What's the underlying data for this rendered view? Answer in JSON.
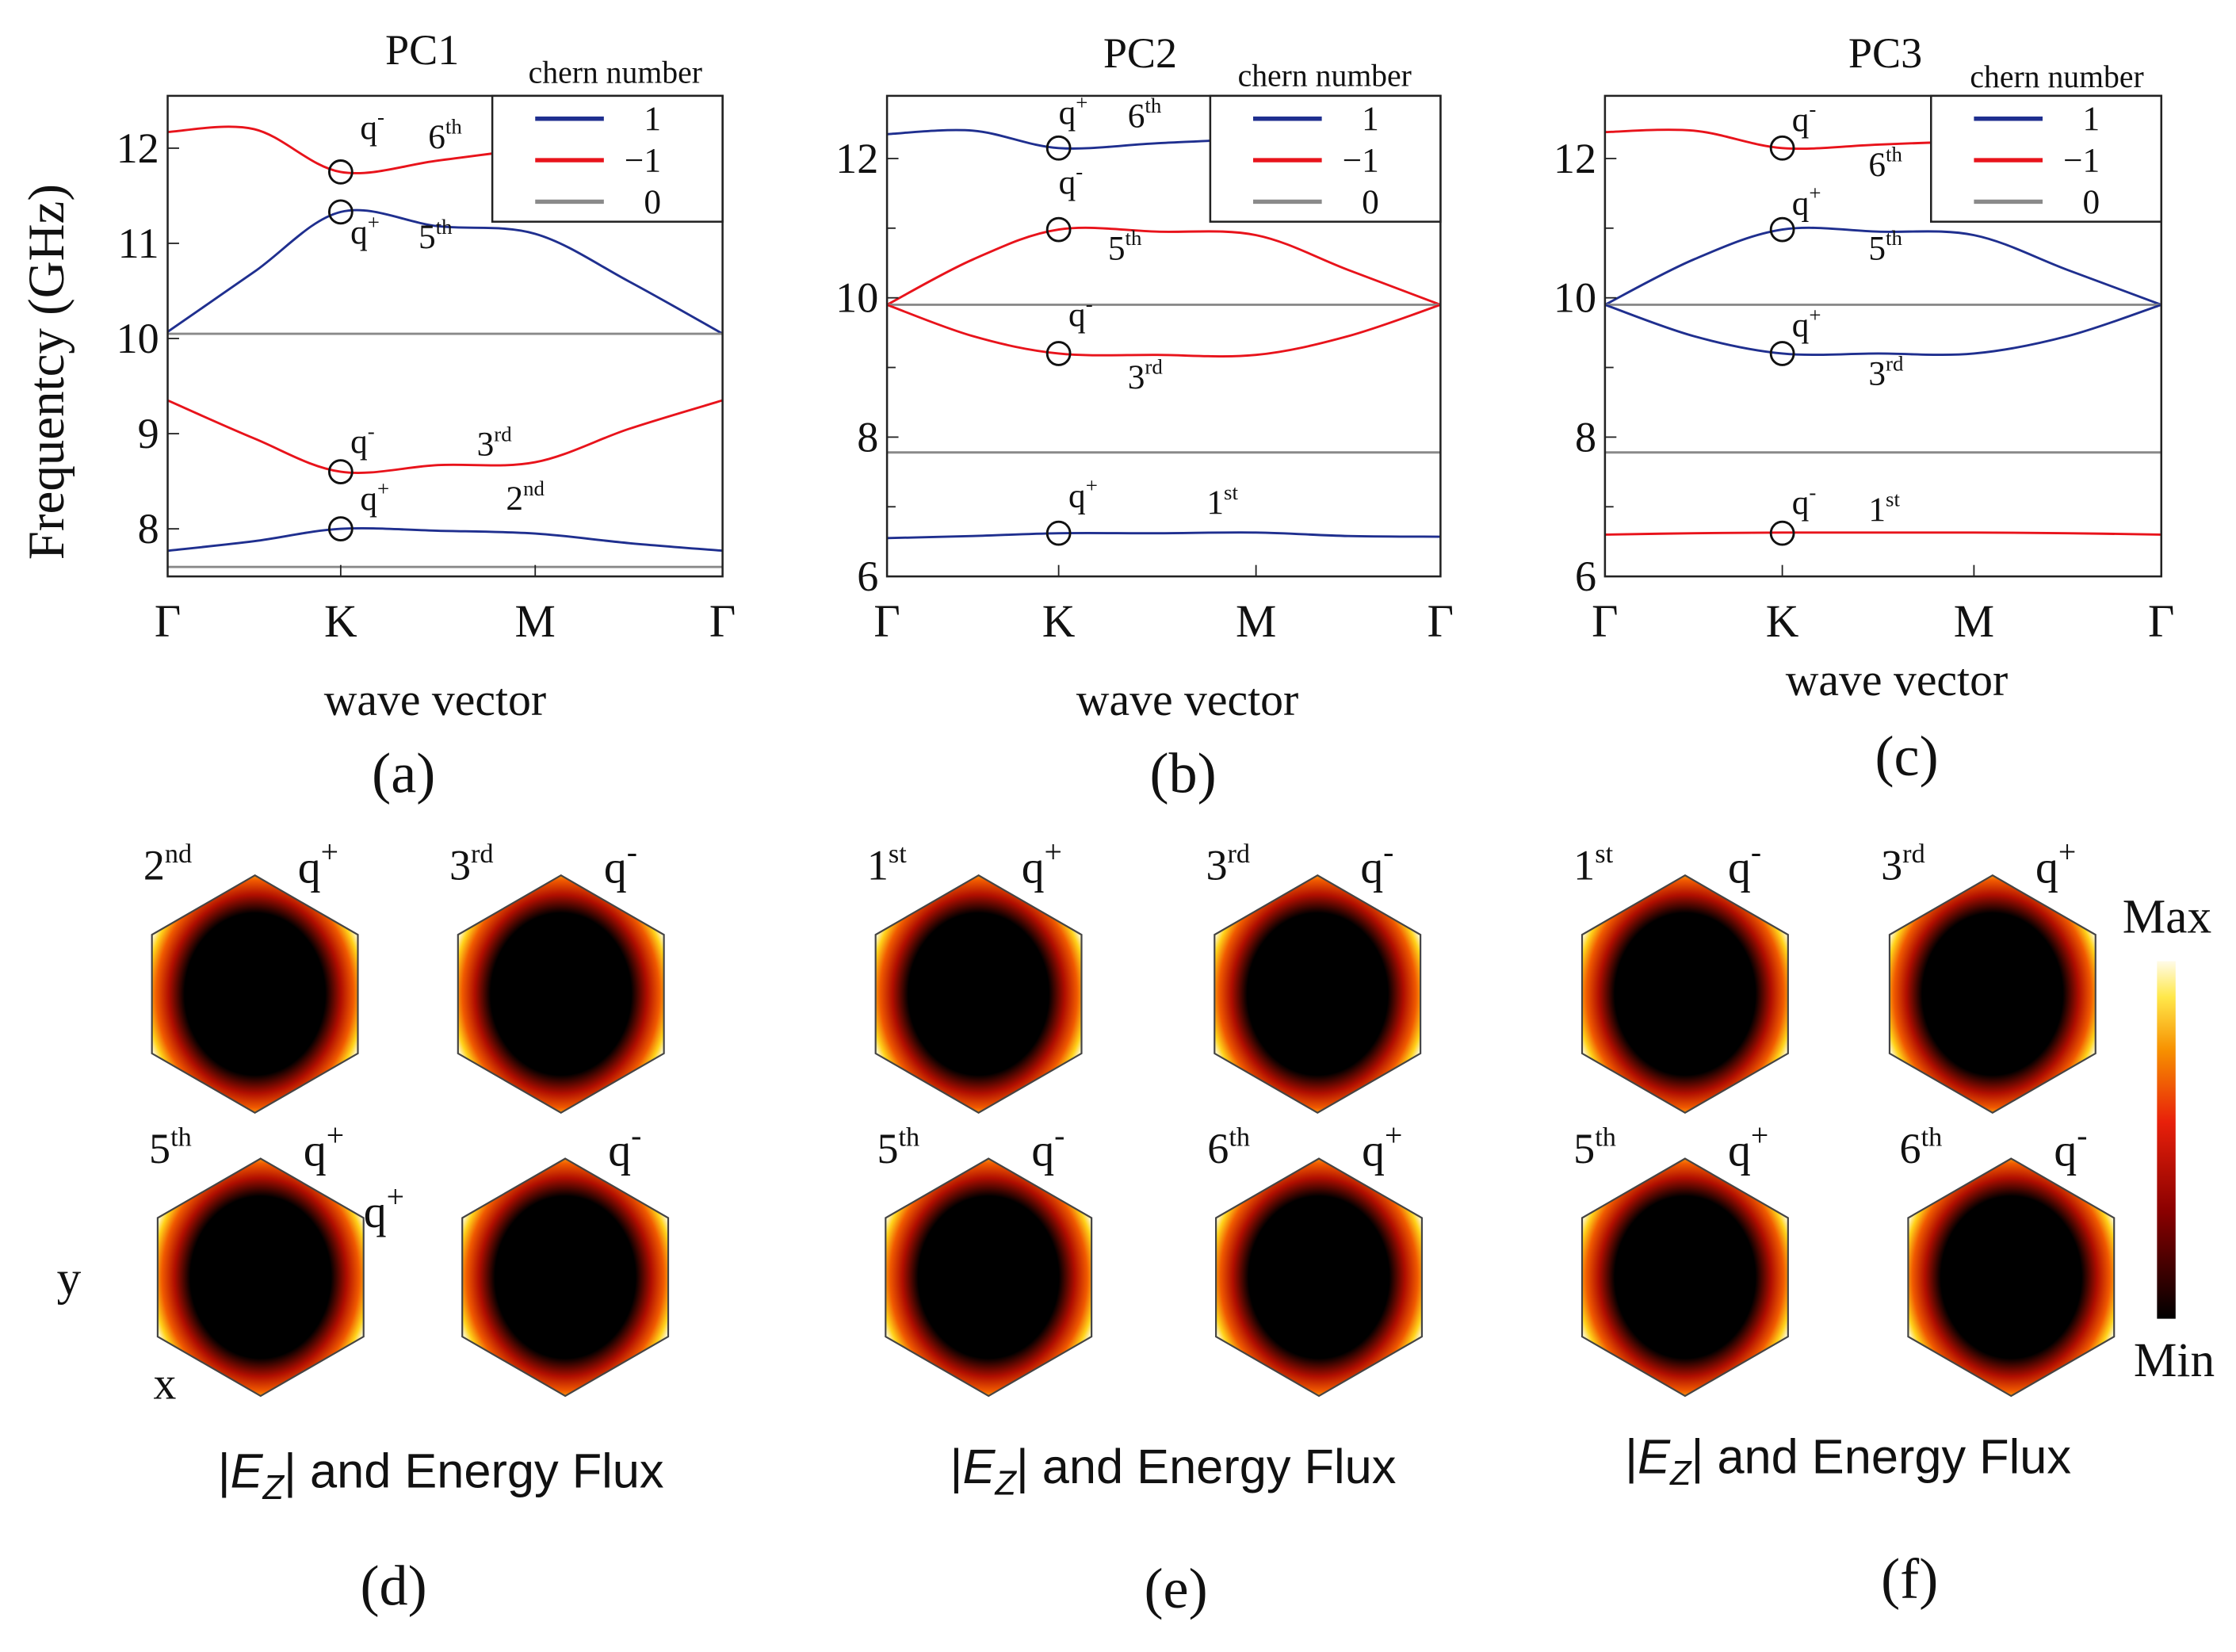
{
  "colors": {
    "chern_1": "#1f2f8f",
    "chern_minus1": "#e8131b",
    "chern_0": "#8a8a8a"
  },
  "chart_data": [
    {
      "type": "line",
      "panel_label": "(a)",
      "title": "PC1",
      "ylabel": "Frequentcy (GHz)",
      "xlabel": "wave vector",
      "x_ticks": [
        "Γ",
        "K",
        "M",
        "Γ"
      ],
      "y_ticks": [
        "8",
        "9",
        "10",
        "11",
        "12"
      ],
      "ylim": [
        7.5,
        12.55
      ],
      "legend": {
        "title": "chern number",
        "entries": [
          {
            "label": "1",
            "color": "#1f2f8f"
          },
          {
            "label": "−1",
            "color": "#e8131b"
          },
          {
            "label": "0",
            "color": "#8a8a8a"
          }
        ],
        "placement": "top-right"
      },
      "x": [
        0,
        0.5,
        1,
        1.5,
        2,
        2.5,
        3
      ],
      "series": [
        {
          "chern": "-1",
          "color": "#e8131b",
          "values": [
            12.17,
            12.2,
            11.75,
            11.87,
            12.0,
            12.1,
            12.15
          ]
        },
        {
          "chern": "1",
          "color": "#1f2f8f",
          "values": [
            10.07,
            10.7,
            11.33,
            11.18,
            11.1,
            10.6,
            10.05
          ]
        },
        {
          "chern": "0",
          "color": "#8a8a8a",
          "values": [
            10.05,
            10.05,
            10.05,
            10.05,
            10.05,
            10.05,
            10.05
          ]
        },
        {
          "chern": "-1",
          "color": "#e8131b",
          "values": [
            9.35,
            8.95,
            8.6,
            8.67,
            8.7,
            9.05,
            9.35
          ]
        },
        {
          "chern": "1",
          "color": "#1f2f8f",
          "values": [
            7.77,
            7.87,
            8.0,
            7.98,
            7.95,
            7.85,
            7.77
          ]
        },
        {
          "chern": "0",
          "color": "#8a8a8a",
          "values": [
            7.6,
            7.6,
            7.6,
            7.6,
            7.6,
            7.6,
            7.6
          ]
        }
      ],
      "markers": [
        {
          "x": 1,
          "y": 11.75
        },
        {
          "x": 1,
          "y": 11.33
        },
        {
          "x": 1,
          "y": 8.6
        },
        {
          "x": 1,
          "y": 8.0
        }
      ],
      "annotations": [
        {
          "text": "q",
          "sup": "-",
          "x": 1.1,
          "y": 12.1
        },
        {
          "text": "6",
          "sup": "th",
          "x": 1.45,
          "y": 12.0
        },
        {
          "text": "q",
          "sup": "+",
          "x": 1.05,
          "y": 11.0
        },
        {
          "text": "5",
          "sup": "th",
          "x": 1.4,
          "y": 10.95
        },
        {
          "text": "q",
          "sup": "-",
          "x": 1.05,
          "y": 8.8
        },
        {
          "text": "3",
          "sup": "rd",
          "x": 1.7,
          "y": 8.77
        },
        {
          "text": "q",
          "sup": "+",
          "x": 1.1,
          "y": 8.2
        },
        {
          "text": "2",
          "sup": "nd",
          "x": 1.85,
          "y": 8.2
        }
      ]
    },
    {
      "type": "line",
      "panel_label": "(b)",
      "title": "PC2",
      "xlabel": "wave vector",
      "x_ticks": [
        "Γ",
        "K",
        "M",
        "Γ"
      ],
      "y_ticks": [
        "6",
        "8",
        "10",
        "12"
      ],
      "ylim": [
        6,
        12.9
      ],
      "legend": {
        "title": "chern number",
        "entries": [
          {
            "label": "1",
            "color": "#1f2f8f"
          },
          {
            "label": "−1",
            "color": "#e8131b"
          },
          {
            "label": "0",
            "color": "#8a8a8a"
          }
        ],
        "placement": "top-right"
      },
      "x": [
        0,
        0.5,
        1,
        1.5,
        2,
        2.5,
        3
      ],
      "series": [
        {
          "chern": "1",
          "color": "#1f2f8f",
          "values": [
            12.35,
            12.4,
            12.15,
            12.22,
            12.28,
            12.3,
            12.3
          ]
        },
        {
          "chern": "-1",
          "color": "#e8131b",
          "values": [
            9.9,
            10.55,
            10.98,
            10.95,
            10.9,
            10.4,
            9.9
          ]
        },
        {
          "chern": "0",
          "color": "#8a8a8a",
          "values": [
            9.9,
            9.9,
            9.9,
            9.9,
            9.9,
            9.9,
            9.9
          ]
        },
        {
          "chern": "-1",
          "color": "#e8131b",
          "values": [
            9.9,
            9.45,
            9.2,
            9.18,
            9.18,
            9.45,
            9.9
          ]
        },
        {
          "chern": "0",
          "color": "#8a8a8a",
          "values": [
            7.78,
            7.78,
            7.78,
            7.78,
            7.78,
            7.78,
            7.78
          ]
        },
        {
          "chern": "1",
          "color": "#1f2f8f",
          "values": [
            6.55,
            6.58,
            6.62,
            6.62,
            6.63,
            6.58,
            6.57
          ]
        }
      ],
      "markers": [
        {
          "x": 1,
          "y": 12.15
        },
        {
          "x": 1,
          "y": 10.98
        },
        {
          "x": 1,
          "y": 9.2
        },
        {
          "x": 1,
          "y": 6.62
        }
      ],
      "annotations": [
        {
          "text": "q",
          "sup": "+",
          "x": 1.0,
          "y": 12.5
        },
        {
          "text": "6",
          "sup": "th",
          "x": 1.35,
          "y": 12.45
        },
        {
          "text": "q",
          "sup": "-",
          "x": 1.0,
          "y": 11.5
        },
        {
          "text": "5",
          "sup": "th",
          "x": 1.25,
          "y": 10.55
        },
        {
          "text": "q",
          "sup": "-",
          "x": 1.05,
          "y": 9.6
        },
        {
          "text": "3",
          "sup": "rd",
          "x": 1.35,
          "y": 8.7
        },
        {
          "text": "q",
          "sup": "+",
          "x": 1.05,
          "y": 7.0
        },
        {
          "text": "1",
          "sup": "st",
          "x": 1.75,
          "y": 6.9
        }
      ]
    },
    {
      "type": "line",
      "panel_label": "(c)",
      "title": "PC3",
      "xlabel": "wave vector",
      "x_ticks": [
        "Γ",
        "K",
        "M",
        "Γ"
      ],
      "y_ticks": [
        "6",
        "8",
        "10",
        "12"
      ],
      "ylim": [
        6,
        12.9
      ],
      "legend": {
        "title": "chern number",
        "entries": [
          {
            "label": "1",
            "color": "#1f2f8f"
          },
          {
            "label": "−1",
            "color": "#e8131b"
          },
          {
            "label": "0",
            "color": "#8a8a8a"
          }
        ],
        "placement": "top-right"
      },
      "x": [
        0,
        0.5,
        1,
        1.5,
        2,
        2.5,
        3
      ],
      "series": [
        {
          "chern": "-1",
          "color": "#e8131b",
          "values": [
            12.38,
            12.4,
            12.15,
            12.2,
            12.25,
            12.28,
            12.3
          ]
        },
        {
          "chern": "1",
          "color": "#1f2f8f",
          "values": [
            9.9,
            10.55,
            10.98,
            10.95,
            10.9,
            10.4,
            9.9
          ]
        },
        {
          "chern": "0",
          "color": "#8a8a8a",
          "values": [
            9.9,
            9.9,
            9.9,
            9.9,
            9.9,
            9.9,
            9.9
          ]
        },
        {
          "chern": "1",
          "color": "#1f2f8f",
          "values": [
            9.9,
            9.45,
            9.2,
            9.2,
            9.2,
            9.45,
            9.9
          ]
        },
        {
          "chern": "0",
          "color": "#8a8a8a",
          "values": [
            7.78,
            7.78,
            7.78,
            7.78,
            7.78,
            7.78,
            7.78
          ]
        },
        {
          "chern": "-1",
          "color": "#e8131b",
          "values": [
            6.6,
            6.62,
            6.63,
            6.63,
            6.63,
            6.62,
            6.6
          ]
        }
      ],
      "markers": [
        {
          "x": 1,
          "y": 12.15
        },
        {
          "x": 1,
          "y": 10.98
        },
        {
          "x": 1,
          "y": 9.2
        },
        {
          "x": 1,
          "y": 6.62
        }
      ],
      "annotations": [
        {
          "text": "q",
          "sup": "-",
          "x": 1.05,
          "y": 12.4
        },
        {
          "text": "6",
          "sup": "th",
          "x": 1.45,
          "y": 11.75
        },
        {
          "text": "q",
          "sup": "+",
          "x": 1.05,
          "y": 11.2
        },
        {
          "text": "5",
          "sup": "th",
          "x": 1.45,
          "y": 10.55
        },
        {
          "text": "q",
          "sup": "+",
          "x": 1.05,
          "y": 9.45
        },
        {
          "text": "3",
          "sup": "rd",
          "x": 1.45,
          "y": 8.75
        },
        {
          "text": "q",
          "sup": "-",
          "x": 1.05,
          "y": 6.9
        },
        {
          "text": "1",
          "sup": "st",
          "x": 1.45,
          "y": 6.8
        }
      ]
    }
  ],
  "field_maps": {
    "caption": {
      "prefix": "|",
      "symbol": "E",
      "sub": "Z",
      "suffix": "| and Energy Flux"
    },
    "axis_y": "y",
    "axis_x": "x",
    "colorbar": {
      "max": "Max",
      "min": "Min"
    },
    "panels": [
      {
        "label": "(d)",
        "maps": [
          {
            "band": "2",
            "sup": "nd",
            "mode": "q",
            "mode_sup": "+"
          },
          {
            "band": "3",
            "sup": "rd",
            "mode": "q",
            "mode_sup": "-"
          },
          {
            "band": "5",
            "sup": "th",
            "mode": "q",
            "mode_sup": "+",
            "extra": "q",
            "extra_sup": "+"
          },
          {
            "band": "",
            "sup": "",
            "mode": "q",
            "mode_sup": "-"
          }
        ]
      },
      {
        "label": "(e)",
        "maps": [
          {
            "band": "1",
            "sup": "st",
            "mode": "q",
            "mode_sup": "+"
          },
          {
            "band": "3",
            "sup": "rd",
            "mode": "q",
            "mode_sup": "-"
          },
          {
            "band": "5",
            "sup": "th",
            "mode": "q",
            "mode_sup": "-"
          },
          {
            "band": "6",
            "sup": "th",
            "mode": "q",
            "mode_sup": "+"
          }
        ]
      },
      {
        "label": "(f)",
        "maps": [
          {
            "band": "1",
            "sup": "st",
            "mode": "q",
            "mode_sup": "-"
          },
          {
            "band": "3",
            "sup": "rd",
            "mode": "q",
            "mode_sup": "+"
          },
          {
            "band": "5",
            "sup": "th",
            "mode": "q",
            "mode_sup": "+"
          },
          {
            "band": "6",
            "sup": "th",
            "mode": "q",
            "mode_sup": "-"
          }
        ]
      }
    ]
  }
}
